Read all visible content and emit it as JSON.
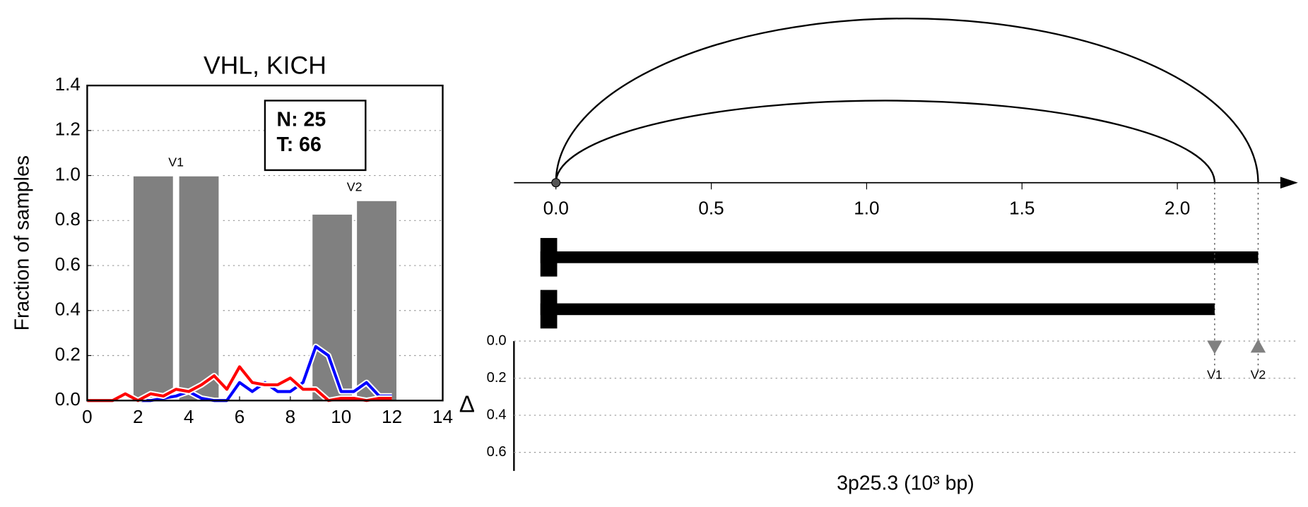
{
  "chart_data": [
    {
      "type": "bar",
      "title": "VHL, KICH",
      "ylabel": "Fraction of samples",
      "xlim": [
        0,
        14
      ],
      "xticks": [
        0,
        2,
        4,
        6,
        8,
        10,
        12,
        14
      ],
      "ylim": [
        0,
        1.4
      ],
      "yticks": [
        {
          "value": 0,
          "label": "0.0"
        },
        0.2,
        0.4,
        0.6,
        0.8,
        {
          "value": 1,
          "label": "1.0"
        },
        1.2,
        1.4
      ],
      "grid": true,
      "bars": {
        "x": [
          2.6,
          4.4,
          9.65,
          11.4
        ],
        "values": [
          1,
          1,
          0.83,
          0.89
        ],
        "color": "#808080",
        "labels": [
          "V1",
          "V2"
        ]
      },
      "x": [
        0,
        0.5,
        1,
        1.5,
        2,
        2.5,
        3,
        3.5,
        4,
        4.5,
        5,
        5.5,
        6,
        6.5,
        7,
        7.5,
        8,
        8.5,
        9,
        9.5,
        10,
        10.5,
        11,
        11.5,
        12
      ],
      "series": [
        {
          "color": "#0000ff",
          "values": [
            null,
            null,
            null,
            null,
            0,
            0,
            0.01,
            0.02,
            0.04,
            0.01,
            0,
            0,
            0.08,
            0.04,
            0.08,
            0.04,
            0.04,
            0.08,
            0.24,
            0.2,
            0.04,
            0.04,
            0.08,
            0.02,
            0.02
          ]
        },
        {
          "color": "#ff0000",
          "values": [
            0,
            0,
            0,
            0.03,
            0,
            0.03,
            0.02,
            0.05,
            0.04,
            0.07,
            0.11,
            0.05,
            0.15,
            0.08,
            0.07,
            0.07,
            0.1,
            0.05,
            0.05,
            0,
            0.01,
            0.01,
            0,
            0.01,
            0.01
          ]
        }
      ],
      "annotation": [
        "N: 25",
        "T: 66"
      ]
    },
    {
      "type": "arc",
      "xlabel": "3p25.3 (10³ bp)",
      "xlim": [
        -0.135,
        2.38
      ],
      "xticks": [
        {
          "value": 0,
          "label": "0.0"
        },
        0.5,
        {
          "value": 1,
          "label": "1.0"
        },
        1.5,
        {
          "value": 2,
          "label": "2.0"
        }
      ],
      "arcs": [
        {
          "start": 0,
          "end": 2.26
        },
        {
          "start": 0,
          "end": 2.12
        }
      ],
      "transcripts": [
        {
          "start": -0.05,
          "end": 2.26
        },
        {
          "start": -0.05,
          "end": 2.12
        }
      ],
      "delta": {
        "ylabel": "Δ",
        "ylim": [
          0,
          0.7
        ],
        "y_inverted": true,
        "yticks": [
          {
            "value": 0,
            "label": "0.0"
          },
          0.2,
          0.4,
          0.6
        ],
        "grid": true,
        "x": [
          2.12,
          2.26
        ],
        "values": [
          0.03,
          0.03
        ],
        "labels": [
          "V1",
          "V2"
        ],
        "markers": [
          "down",
          "up"
        ],
        "color": "#808080"
      }
    }
  ]
}
